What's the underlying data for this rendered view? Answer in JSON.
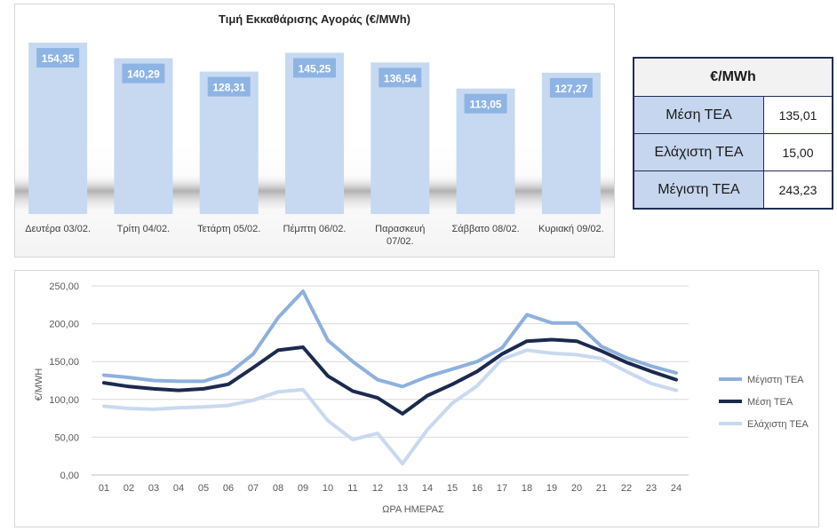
{
  "chart_data": [
    {
      "type": "bar",
      "title": "Τιμή Εκκαθάρισης Αγοράς (€/MWh)",
      "categories": [
        "Δευτέρα 03/02.",
        "Τρίτη 04/02.",
        "Τετάρτη 05/02.",
        "Πέμπτη 06/02.",
        "Παρασκευή 07/02.",
        "Σάββατο 08/02.",
        "Κυριακή 09/02."
      ],
      "values": [
        154.35,
        140.29,
        128.31,
        145.25,
        136.54,
        113.05,
        127.27
      ],
      "value_labels": [
        "154,35",
        "140,29",
        "128,31",
        "145,25",
        "136,54",
        "113,05",
        "127,27"
      ],
      "ylim": [
        0,
        160
      ],
      "colors": {
        "bar": "#c6d9f1",
        "label_box": "#8eb4e3",
        "label_text": "#ffffff"
      }
    },
    {
      "type": "line",
      "xlabel": "ΩΡΑ ΗΜΕΡΑΣ",
      "ylabel": "€/MWH",
      "x": [
        "01",
        "02",
        "03",
        "04",
        "05",
        "06",
        "07",
        "08",
        "09",
        "10",
        "11",
        "12",
        "13",
        "14",
        "15",
        "16",
        "17",
        "18",
        "19",
        "20",
        "21",
        "22",
        "23",
        "24"
      ],
      "ylim": [
        0,
        250
      ],
      "yticks": [
        "0,00",
        "50,00",
        "100,00",
        "150,00",
        "200,00",
        "250,00"
      ],
      "grid": true,
      "legend": "right",
      "series": [
        {
          "name": "Μέγιστη ΤΕΑ",
          "color": "#8eb0dd",
          "values": [
            132,
            129,
            125,
            124,
            124,
            134,
            160,
            208,
            243,
            178,
            150,
            126,
            117,
            130,
            140,
            150,
            168,
            212,
            201,
            201,
            170,
            155,
            144,
            135
          ]
        },
        {
          "name": "Μέση ΤΕΑ",
          "color": "#1b2a4e",
          "values": [
            122,
            117,
            114,
            112,
            114,
            120,
            142,
            165,
            169,
            131,
            111,
            102,
            81,
            105,
            120,
            137,
            160,
            177,
            179,
            177,
            164,
            149,
            137,
            126
          ]
        },
        {
          "name": "Ελάχιστη ΤΕΑ",
          "color": "#c9d9ef",
          "values": [
            91,
            88,
            87,
            89,
            90,
            92,
            99,
            110,
            113,
            72,
            47,
            55,
            15,
            60,
            95,
            118,
            153,
            165,
            161,
            159,
            154,
            137,
            121,
            112
          ]
        }
      ]
    }
  ],
  "stats_table": {
    "header": "€/MWh",
    "rows": [
      {
        "label": "Μέση ΤΕΑ",
        "value": "135,01"
      },
      {
        "label": "Ελάχιστη ΤΕΑ",
        "value": "15,00"
      },
      {
        "label": "Μέγιστη ΤΕΑ",
        "value": "243,23"
      }
    ]
  }
}
